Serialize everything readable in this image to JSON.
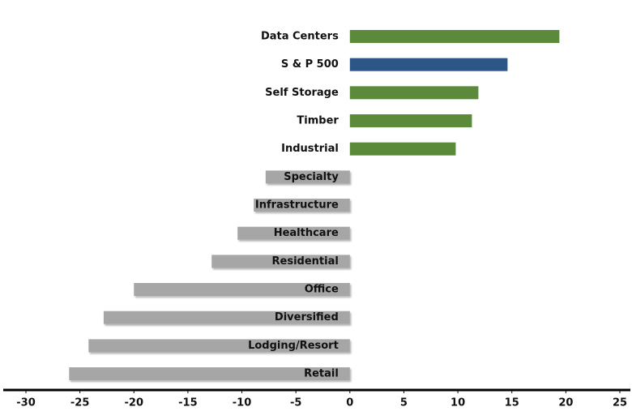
{
  "chart_data": {
    "type": "barh",
    "categories": [
      "Data Centers",
      "S & P 500",
      "Self Storage",
      "Timber",
      "Industrial",
      "Specialty",
      "Infrastructure",
      "Healthcare",
      "Residential",
      "Office",
      "Diversified",
      "Lodging/Resort",
      "Retail"
    ],
    "values": [
      19.4,
      14.6,
      11.9,
      11.3,
      9.8,
      -7.8,
      -8.9,
      -10.4,
      -12.8,
      -20,
      -22.8,
      -24.2,
      -26
    ],
    "colors": [
      "#5b8a3a",
      "#2b5687",
      "#5b8a3a",
      "#5b8a3a",
      "#5b8a3a",
      "#a6a6a6",
      "#a6a6a6",
      "#a6a6a6",
      "#a6a6a6",
      "#a6a6a6",
      "#a6a6a6",
      "#a6a6a6",
      "#a6a6a6"
    ],
    "xlim": [
      -30,
      25
    ],
    "xticks": [
      -30,
      -25,
      -20,
      -15,
      -10,
      -5,
      0,
      5,
      10,
      15,
      20,
      25
    ]
  }
}
